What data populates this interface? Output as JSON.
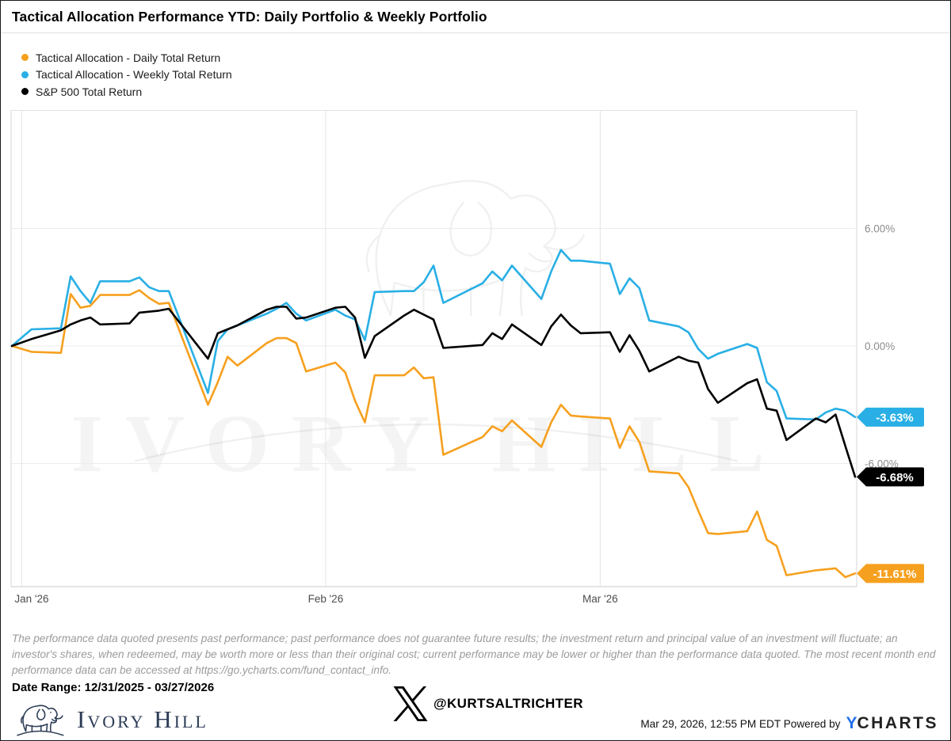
{
  "header": {
    "title": "Tactical Allocation Performance YTD: Daily Portfolio & Weekly Portfolio"
  },
  "legend": [
    {
      "label": "Tactical Allocation - Daily Total Return",
      "color": "#f6a01f"
    },
    {
      "label": "Tactical Allocation - Weekly Total Return",
      "color": "#29afe5"
    },
    {
      "label": "S&P 500 Total Return",
      "color": "#000000"
    }
  ],
  "watermark": {
    "text": "IVORY HILL"
  },
  "chart_data": {
    "type": "line",
    "title": "Tactical Allocation Performance YTD: Daily Portfolio & Weekly Portfolio",
    "legend_position": "top-left",
    "x_axis": {
      "tick_labels": [
        "Jan '26",
        "Feb '26",
        "Mar '26"
      ],
      "tick_days": [
        1,
        32,
        60
      ],
      "domain_days": [
        0,
        86
      ],
      "start_date": "12/31/2025",
      "end_date": "03/27/2026"
    },
    "y_axis": {
      "unit": "%",
      "tick_labels": [
        "6.00%",
        "0.00%",
        "-6.00%"
      ],
      "tick_values": [
        6,
        0,
        -6
      ],
      "ylim": [
        -12.3,
        12.0
      ],
      "grid": true
    },
    "dates": [
      "12/31",
      "1/2",
      "1/5",
      "1/6",
      "1/7",
      "1/8",
      "1/9",
      "1/12",
      "1/13",
      "1/14",
      "1/15",
      "1/16",
      "1/20",
      "1/21",
      "1/22",
      "1/23",
      "1/26",
      "1/27",
      "1/28",
      "1/29",
      "1/30",
      "2/2",
      "2/3",
      "2/4",
      "2/5",
      "2/6",
      "2/9",
      "2/10",
      "2/11",
      "2/12",
      "2/13",
      "2/17",
      "2/18",
      "2/19",
      "2/20",
      "2/23",
      "2/24",
      "2/25",
      "2/26",
      "2/27",
      "3/2",
      "3/3",
      "3/4",
      "3/5",
      "3/6",
      "3/9",
      "3/10",
      "3/11",
      "3/12",
      "3/13",
      "3/16",
      "3/17",
      "3/18",
      "3/19",
      "3/20",
      "3/23",
      "3/24",
      "3/25",
      "3/26",
      "3/27"
    ],
    "x_days": [
      0,
      2,
      5,
      6,
      7,
      8,
      9,
      12,
      13,
      14,
      15,
      16,
      20,
      21,
      22,
      23,
      26,
      27,
      28,
      29,
      30,
      33,
      34,
      35,
      36,
      37,
      40,
      41,
      42,
      43,
      44,
      48,
      49,
      50,
      51,
      54,
      55,
      56,
      57,
      58,
      61,
      62,
      63,
      64,
      65,
      68,
      69,
      70,
      71,
      72,
      75,
      76,
      77,
      78,
      79,
      82,
      83,
      84,
      85,
      86
    ],
    "series": [
      {
        "name": "Tactical Allocation - Daily Total Return",
        "color": "#f6a01f",
        "end_label": "-11.61%",
        "values": [
          0,
          -0.3,
          -0.35,
          2.65,
          1.95,
          2.05,
          2.6,
          2.6,
          2.85,
          2.45,
          2.15,
          2.2,
          -3.0,
          -1.85,
          -0.55,
          -1.0,
          0.15,
          0.4,
          0.4,
          0.15,
          -1.3,
          -0.85,
          -1.35,
          -2.8,
          -3.9,
          -1.5,
          -1.5,
          -1.1,
          -1.65,
          -1.6,
          -5.55,
          -4.65,
          -4.1,
          -4.35,
          -3.8,
          -5.15,
          -3.9,
          -3.0,
          -3.55,
          -3.6,
          -3.7,
          -5.2,
          -4.1,
          -4.9,
          -6.4,
          -6.5,
          -7.2,
          -8.4,
          -9.55,
          -9.6,
          -9.45,
          -8.45,
          -9.9,
          -10.2,
          -11.7,
          -11.45,
          -11.4,
          -11.35,
          -11.8,
          -11.61
        ]
      },
      {
        "name": "Tactical Allocation - Weekly Total Return",
        "color": "#29afe5",
        "end_label": "-3.63%",
        "values": [
          0,
          0.85,
          0.9,
          3.55,
          2.8,
          2.2,
          3.3,
          3.3,
          3.5,
          3.0,
          2.8,
          2.8,
          -2.4,
          0.25,
          0.85,
          1.05,
          1.65,
          1.9,
          2.2,
          1.65,
          1.3,
          1.85,
          1.55,
          1.35,
          0.3,
          2.75,
          2.8,
          2.8,
          3.25,
          4.1,
          2.2,
          3.2,
          3.8,
          3.35,
          4.1,
          2.4,
          3.8,
          4.9,
          4.35,
          4.35,
          4.2,
          2.65,
          3.45,
          2.95,
          1.3,
          1.0,
          0.7,
          -0.15,
          -0.65,
          -0.4,
          0.1,
          -0.1,
          -1.85,
          -2.3,
          -3.7,
          -3.75,
          -3.4,
          -3.2,
          -3.3,
          -3.63
        ]
      },
      {
        "name": "S&P 500 Total Return",
        "color": "#000000",
        "end_label": "-6.68%",
        "values": [
          0,
          0.35,
          0.8,
          1.1,
          1.3,
          1.45,
          1.1,
          1.15,
          1.7,
          1.75,
          1.8,
          1.9,
          -0.65,
          0.65,
          0.85,
          1.05,
          1.85,
          2.0,
          2.0,
          1.4,
          1.45,
          1.95,
          2.0,
          1.45,
          -0.6,
          0.5,
          1.55,
          1.85,
          1.6,
          1.35,
          -0.1,
          0.05,
          0.65,
          0.35,
          1.1,
          0.05,
          1.0,
          1.6,
          1.05,
          0.65,
          0.7,
          -0.3,
          0.55,
          -0.25,
          -1.3,
          -0.55,
          -0.75,
          -0.85,
          -2.2,
          -2.9,
          -1.9,
          -1.7,
          -3.2,
          -3.3,
          -4.8,
          -3.7,
          -3.9,
          -3.5,
          -5.1,
          -6.68
        ]
      }
    ]
  },
  "disclaimer": {
    "text": "The performance data quoted presents past performance; past performance does not guarantee future results; the investment return and principal value of an investment will fluctuate; an investor's shares, when redeemed, may be worth more or less than their original cost; current performance may be lower or higher than the performance data quoted. The most recent month end performance data can be accessed at https://go.ycharts.com/fund_contact_info."
  },
  "footer": {
    "date_range": "Date Range: 12/31/2025 - 03/27/2026",
    "brand": "Ivory Hill",
    "handle": "@KURTSALTRICHTER",
    "timestamp": "Mar 29, 2026, 12:55 PM EDT Powered by",
    "ycharts_y": "Y",
    "ycharts_rest": "CHARTS"
  }
}
